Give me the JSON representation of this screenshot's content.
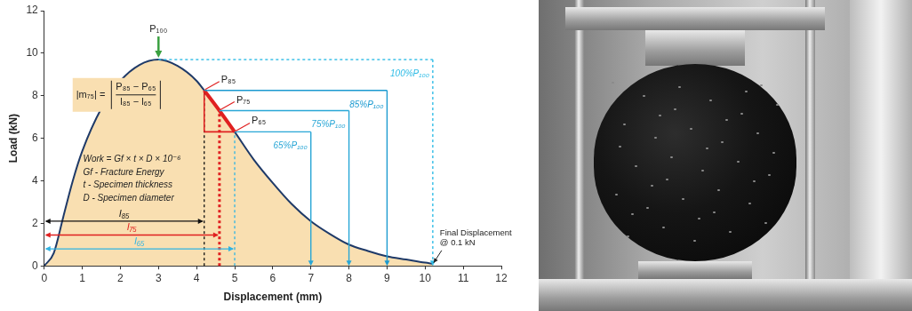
{
  "chart_data": {
    "type": "line",
    "x_label": "Displacement (mm)",
    "y_label": "Load (kN)",
    "x": [
      0,
      0.25,
      0.5,
      0.75,
      1,
      1.5,
      2,
      2.5,
      3,
      3.5,
      4,
      4.2,
      4.6,
      5,
      5.5,
      6,
      6.5,
      7,
      7.5,
      8,
      8.5,
      9,
      9.5,
      10,
      10.2
    ],
    "values": [
      0,
      0.6,
      2.3,
      4.0,
      5.4,
      7.4,
      8.7,
      9.45,
      9.7,
      9.4,
      8.7,
      8.25,
      7.3,
      6.3,
      5.0,
      3.9,
      2.9,
      2.1,
      1.5,
      1.0,
      0.7,
      0.45,
      0.3,
      0.15,
      0.1
    ],
    "color": "#1f3a68",
    "xlim": [
      0,
      12
    ],
    "xticks": [
      0,
      1,
      2,
      3,
      4,
      5,
      6,
      7,
      8,
      9,
      10,
      11,
      12
    ],
    "ylim": [
      0,
      12
    ],
    "yticks": [
      0,
      2,
      4,
      6,
      8,
      10,
      12
    ],
    "grid": false,
    "points": [
      {
        "label": "P₁₀₀",
        "x": 3,
        "y": 9.7,
        "color": "#3aa040"
      },
      {
        "label": "P₈₅",
        "x": 4.2,
        "y": 8.25,
        "color": "#e02020"
      },
      {
        "label": "P₇₅",
        "x": 4.6,
        "y": 7.3,
        "color": "#e02020"
      },
      {
        "label": "P₆₅",
        "x": 5,
        "y": 6.3,
        "color": "#e02020"
      }
    ],
    "slope_segment": {
      "x": [
        4.2,
        5
      ],
      "color": "#e02020"
    },
    "guides": [
      {
        "label": "100%P₁₀₀",
        "from_x": 3,
        "to_x": 10.2,
        "y": 9.7,
        "color": "#2fbce6",
        "line_style": "dotted"
      },
      {
        "label": "85%P₁₀₀",
        "from_x": 4.2,
        "to_x": 9,
        "y": 8.25,
        "color": "#1b9ad0",
        "line_style": "solid"
      },
      {
        "label": "75%P₁₀₀",
        "from_x": 4.6,
        "to_x": 8,
        "y": 7.3,
        "color": "#28a6d6",
        "line_style": "solid"
      },
      {
        "label": "65%P₁₀₀",
        "from_x": 5,
        "to_x": 7,
        "y": 6.3,
        "color": "#28a6d6",
        "line_style": "solid"
      }
    ],
    "lengths": [
      {
        "label": "l₈₅",
        "to_x": 4.2,
        "y": 2.1,
        "top": 8.25,
        "color": "#111111"
      },
      {
        "label": "l₇₅",
        "to_x": 4.6,
        "y": 1.45,
        "top": 7.3,
        "color": "#e02020"
      },
      {
        "label": "l₆₅",
        "to_x": 5,
        "y": 0.8,
        "top": 6.3,
        "color": "#2fb3e3"
      }
    ],
    "formula": {
      "lhs": "|m₇₅| =",
      "numerator": "P₈₅ − P₆₅",
      "denominator": "l₈₅ − l₆₅"
    },
    "notes": [
      "Work = Gf × t × D × 10⁻⁶",
      "Gf - Fracture Energy",
      "t - Specimen thickness",
      "D - Specimen diameter"
    ],
    "final_point": {
      "lines": [
        "Final Displacement",
        "@ 0.1 kN"
      ],
      "x": 10.2,
      "y": 0.1
    }
  }
}
